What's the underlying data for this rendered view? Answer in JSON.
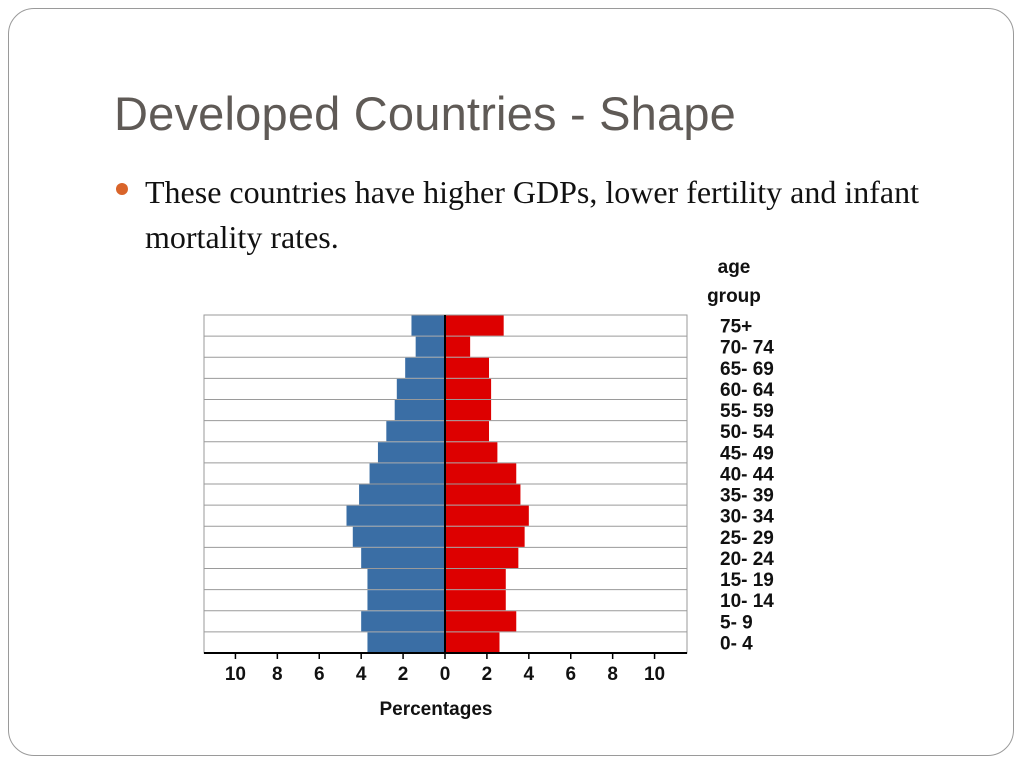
{
  "slide": {
    "title": "Developed Countries - Shape",
    "bullet": "These countries have higher GDPs, lower fertility and infant mortality rates."
  },
  "colors": {
    "male": "#3a6ea5",
    "female": "#dd0000",
    "bullet": "#d9642a",
    "title": "#5f5a56"
  },
  "chart_data": {
    "type": "bar",
    "orientation": "horizontal",
    "xlabel": "Percentages",
    "ylabel_lines": [
      "age",
      "group"
    ],
    "categories": [
      "75+",
      "70- 74",
      "65- 69",
      "60- 64",
      "55- 59",
      "50- 54",
      "45- 49",
      "40- 44",
      "35- 39",
      "30- 34",
      "25- 29",
      "20- 24",
      "15- 19",
      "10- 14",
      "5- 9",
      "0- 4"
    ],
    "x_ticks_left": [
      "10",
      "8",
      "6",
      "4",
      "2",
      "0"
    ],
    "x_ticks_right": [
      "2",
      "4",
      "6",
      "8",
      "10"
    ],
    "xlim": [
      -11.5,
      11.5
    ],
    "series": [
      {
        "values": [
          1.6,
          1.4,
          1.9,
          2.3,
          2.4,
          2.8,
          3.2,
          3.6,
          4.1,
          4.7,
          4.4,
          4.0,
          3.7,
          3.7,
          4.0,
          3.7
        ]
      },
      {
        "values": [
          2.8,
          1.2,
          2.1,
          2.2,
          2.2,
          2.1,
          2.5,
          3.4,
          3.6,
          4.0,
          3.8,
          3.5,
          2.9,
          2.9,
          3.4,
          2.6
        ]
      }
    ]
  }
}
